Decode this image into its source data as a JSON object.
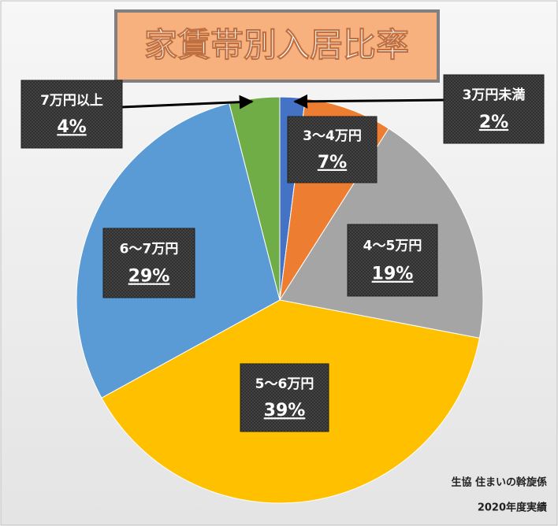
{
  "chart_data": {
    "type": "pie",
    "title": "家賃帯別入居比率",
    "categories": [
      "3万円未満",
      "3〜4万円",
      "4〜5万円",
      "5〜6万円",
      "6〜7万円",
      "7万円以上"
    ],
    "values": [
      2,
      7,
      19,
      39,
      29,
      4
    ],
    "value_labels": [
      "2%",
      "7%",
      "19%",
      "39%",
      "29%",
      "4%"
    ],
    "colors": [
      "#4472c4",
      "#ed7d31",
      "#a5a5a5",
      "#ffc000",
      "#5b9bd5",
      "#70ad47"
    ],
    "notes": [
      "生協 住まいの斡旋係",
      "2020年度実績"
    ]
  }
}
